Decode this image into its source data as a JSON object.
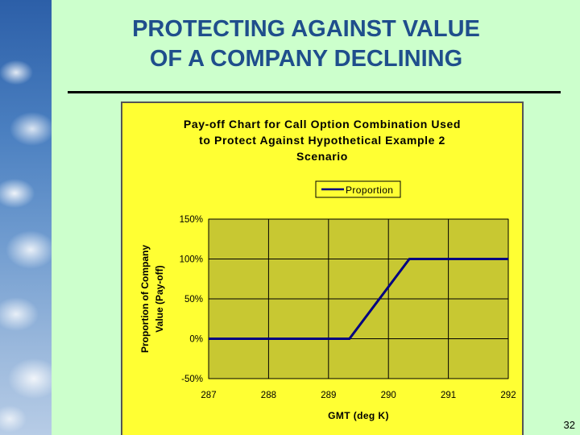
{
  "slide": {
    "title_line1": "PROTECTING AGAINST VALUE",
    "title_line2": "OF A COMPANY DECLINING",
    "page_number": "32"
  },
  "colors": {
    "background": "#ccffcc",
    "title": "#1f4e8c",
    "chart_area": "#ffff33",
    "plot_area": "#c8c832",
    "line": "#000080"
  },
  "chart_data": {
    "type": "line",
    "title": [
      "Pay-off Chart for Call Option Combination Used",
      "to Protect Against Hypothetical Example 2",
      "Scenario"
    ],
    "xlabel": "GMT (deg K)",
    "ylabel": [
      "Proportion of Company",
      "Value (Pay-off)"
    ],
    "legend_position": "top-center",
    "grid": true,
    "x_ticks": [
      287,
      288,
      289,
      290,
      291,
      292
    ],
    "x_tick_labels": [
      "287",
      "288",
      "289",
      "290",
      "291",
      "292"
    ],
    "y_ticks": [
      -0.5,
      0,
      0.5,
      1.0,
      1.5
    ],
    "y_tick_labels": [
      "-50%",
      "0%",
      "50%",
      "100%",
      "150%"
    ],
    "xlim": [
      287,
      292
    ],
    "ylim": [
      -0.5,
      1.5
    ],
    "series": [
      {
        "name": "Proportion",
        "x": [
          287,
          289.35,
          290.35,
          292
        ],
        "y": [
          0,
          0,
          1.0,
          1.0
        ]
      }
    ]
  }
}
